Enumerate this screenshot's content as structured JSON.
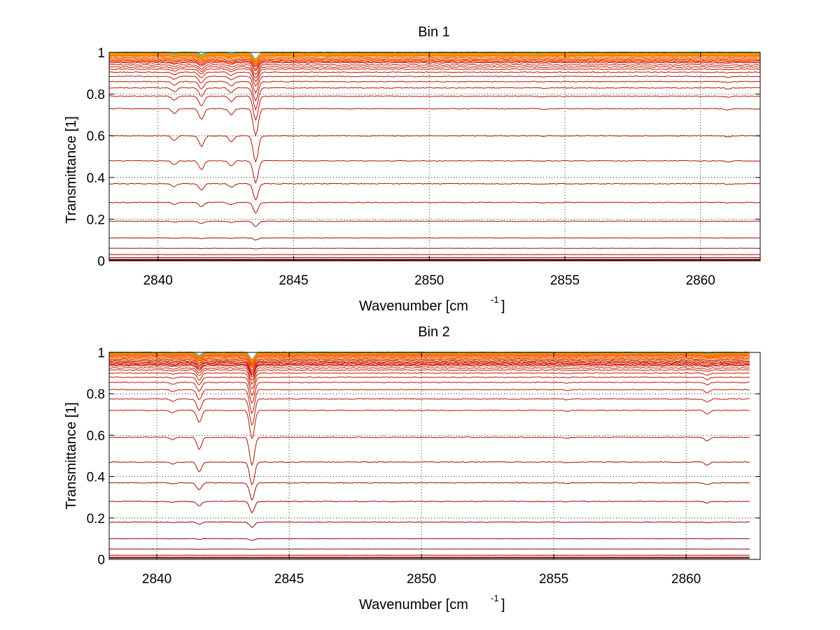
{
  "chart_data": [
    {
      "type": "line",
      "title": "Bin 1",
      "xlabel": "Wavenumber [cm",
      "xlabel_sup": "-1",
      "xlabel_close": "]",
      "ylabel": "Transmittance [1]",
      "xlim": [
        2838.2,
        2862.2
      ],
      "ylim": [
        0,
        1
      ],
      "grid": true,
      "xticks": [
        2840,
        2845,
        2850,
        2855,
        2860
      ],
      "yticks": [
        0,
        0.2,
        0.4,
        0.6,
        0.8,
        1
      ],
      "ytick_labels": [
        "0",
        "0.2",
        "0.4",
        "0.6",
        "0.8",
        "1"
      ],
      "absorption_lines": [
        {
          "x": 2840.6,
          "relative_depth": 0.04
        },
        {
          "x": 2841.6,
          "relative_depth": 0.09
        },
        {
          "x": 2842.7,
          "relative_depth": 0.05
        },
        {
          "x": 2843.6,
          "relative_depth": 0.22
        },
        {
          "x": 2854.2,
          "relative_depth": 0.005
        },
        {
          "x": 2861.0,
          "relative_depth": 0.01
        }
      ],
      "series_baselines": [
        1.0,
        0.995,
        0.99,
        0.985,
        0.98,
        0.975,
        0.97,
        0.965,
        0.96,
        0.955,
        0.95,
        0.94,
        0.93,
        0.92,
        0.905,
        0.885,
        0.86,
        0.83,
        0.79,
        0.73,
        0.6,
        0.48,
        0.37,
        0.28,
        0.19,
        0.11,
        0.06,
        0.03,
        0.015,
        0.005
      ],
      "series_colors": [
        "#20c0b0",
        "#ff9900",
        "#ff9900",
        "#ff7a00",
        "#ff7a00",
        "#ff6a00",
        "#ff5a00",
        "#ee4400",
        "#e03000",
        "#d82400",
        "#d02000",
        "#c81a00",
        "#c81a00",
        "#c01800",
        "#c01800",
        "#b81400",
        "#b81400",
        "#b81400",
        "#b81400",
        "#b01200",
        "#b01200",
        "#b01200",
        "#a81000",
        "#a81000",
        "#a81000",
        "#a00e00",
        "#980c00",
        "#900a00",
        "#880800",
        "#800000"
      ]
    },
    {
      "type": "line",
      "title": "Bin 2",
      "xlabel": "Wavenumber [cm",
      "xlabel_sup": "-1",
      "xlabel_close": "]",
      "ylabel": "Transmittance [1]",
      "xlim": [
        2838.2,
        2862.8
      ],
      "ylim": [
        0,
        1
      ],
      "grid": true,
      "xticks": [
        2840,
        2845,
        2850,
        2855,
        2860
      ],
      "yticks": [
        0,
        0.2,
        0.4,
        0.6,
        0.8,
        1
      ],
      "ytick_labels": [
        "0",
        "0.2",
        "0.4",
        "0.6",
        "0.8",
        "1"
      ],
      "absorption_lines": [
        {
          "x": 2840.6,
          "relative_depth": 0.02
        },
        {
          "x": 2841.6,
          "relative_depth": 0.1
        },
        {
          "x": 2843.6,
          "relative_depth": 0.24
        },
        {
          "x": 2855.5,
          "relative_depth": 0.008
        },
        {
          "x": 2860.8,
          "relative_depth": 0.03
        }
      ],
      "series_baselines": [
        1.0,
        0.995,
        0.99,
        0.985,
        0.98,
        0.975,
        0.97,
        0.965,
        0.96,
        0.955,
        0.95,
        0.945,
        0.94,
        0.935,
        0.925,
        0.915,
        0.9,
        0.88,
        0.855,
        0.82,
        0.775,
        0.72,
        0.59,
        0.47,
        0.37,
        0.28,
        0.18,
        0.1,
        0.05,
        0.02,
        0.008
      ]
    }
  ]
}
